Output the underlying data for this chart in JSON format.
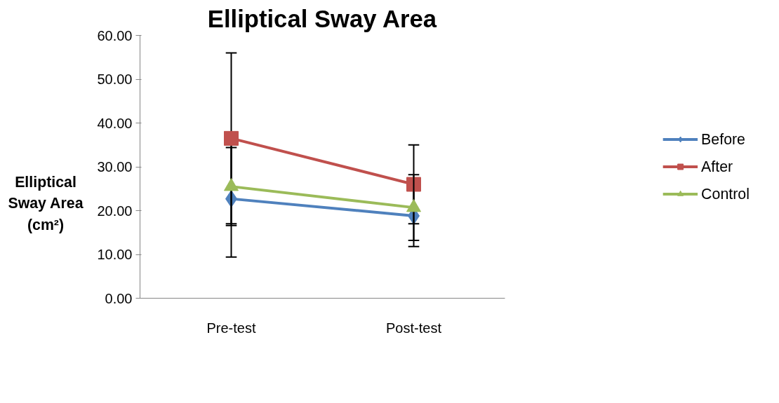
{
  "chart_data": {
    "type": "line",
    "title": "Elliptical Sway Area",
    "ylabel": "Elliptical Sway Area (cm²)",
    "categories": [
      "Pre-test",
      "Post-test"
    ],
    "series": [
      {
        "name": "Before",
        "color": "#4f81bd",
        "marker": "diamond",
        "values": [
          22.7,
          18.8
        ],
        "errors": [
          13.3,
          7.0
        ]
      },
      {
        "name": "After",
        "color": "#c0504d",
        "marker": "square",
        "values": [
          36.5,
          26.0
        ],
        "errors": [
          19.5,
          9.0
        ]
      },
      {
        "name": "Control",
        "color": "#9bbb59",
        "marker": "triangle",
        "values": [
          25.5,
          20.7
        ],
        "errors": [
          8.9,
          7.5
        ]
      }
    ],
    "ylim": [
      0,
      60
    ],
    "yticks": [
      {
        "value": 0,
        "label": "0.00"
      },
      {
        "value": 10,
        "label": "10.00"
      },
      {
        "value": 20,
        "label": "20.00"
      },
      {
        "value": 30,
        "label": "30.00"
      },
      {
        "value": 40,
        "label": "40.00"
      },
      {
        "value": 50,
        "label": "50.00"
      },
      {
        "value": 60,
        "label": "60.00"
      }
    ],
    "grid": false,
    "legend": "right"
  }
}
